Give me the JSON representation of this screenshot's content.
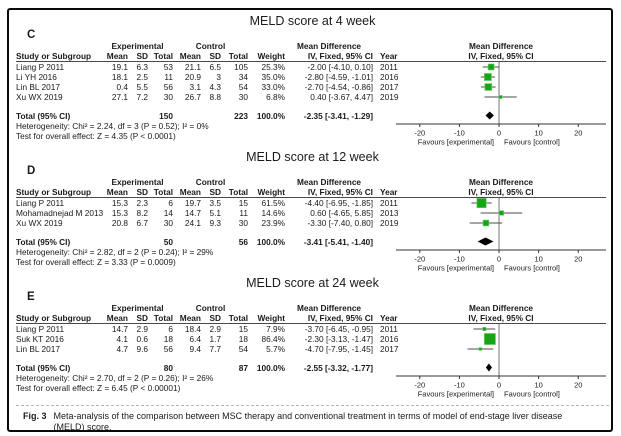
{
  "figure": {
    "caption_label": "Fig. 3",
    "caption_text": "Meta-analysis of the comparison between MSC therapy and conventional treatment in terms of model of end-stage liver disease (MELD) score."
  },
  "table_headers": {
    "study": "Study or Subgroup",
    "experimental": "Experimental",
    "control": "Control",
    "mean": "Mean",
    "sd": "SD",
    "total": "Total",
    "weight": "Weight",
    "mean_difference": "Mean Difference",
    "iv_fixed": "IV, Fixed, 95% CI",
    "year": "Year",
    "total_row": "Total (95% CI)"
  },
  "axis": {
    "favours_left": "Favours [experimental]",
    "favours_right": "Favours [control]"
  },
  "colors": {
    "square_green": "#17a517",
    "square_border": "#72cf72",
    "diamond_black": "#000000",
    "ci_line": "#4d4d4d"
  },
  "panels": [
    {
      "label": "C",
      "title": "MELD score at 4 week",
      "studies": [
        {
          "name": "Liang P 2011",
          "mean_e": "19.1",
          "sd_e": "6.3",
          "total_e": "53",
          "mean_c": "21.1",
          "sd_c": "6.5",
          "total_c": "105",
          "weight": "25.3%",
          "ci": "-2.00 [-4.10, 0.10]",
          "year": "2011"
        },
        {
          "name": "Li YH 2016",
          "mean_e": "18.1",
          "sd_e": "2.5",
          "total_e": "11",
          "mean_c": "20.9",
          "sd_c": "3",
          "total_c": "34",
          "weight": "35.0%",
          "ci": "-2.80 [-4.59, -1.01]",
          "year": "2016"
        },
        {
          "name": "Lin BL 2017",
          "mean_e": "0.4",
          "sd_e": "5.5",
          "total_e": "56",
          "mean_c": "3.1",
          "sd_c": "4.3",
          "total_c": "54",
          "weight": "33.0%",
          "ci": "-2.70 [-4.54, -0.86]",
          "year": "2017"
        },
        {
          "name": "Xu WX 2019",
          "mean_e": "27.1",
          "sd_e": "7.2",
          "total_e": "30",
          "mean_c": "26.7",
          "sd_c": "8.8",
          "total_c": "30",
          "weight": "6.8%",
          "ci": "0.40 [-3.67, 4.47]",
          "year": "2019"
        }
      ],
      "total": {
        "total_e": "150",
        "total_c": "223",
        "weight": "100.0%",
        "ci": "-2.35 [-3.41, -1.29]"
      },
      "heterogeneity": "Heterogeneity: Chi² = 2.24, df = 3 (P = 0.52); I² = 0%",
      "overall_effect": "Test for overall effect: Z = 4.35 (P < 0.0001)"
    },
    {
      "label": "D",
      "title": "MELD score at 12 week",
      "studies": [
        {
          "name": "Liang P 2011",
          "mean_e": "15.3",
          "sd_e": "2.3",
          "total_e": "6",
          "mean_c": "19.7",
          "sd_c": "3.5",
          "total_c": "15",
          "weight": "61.5%",
          "ci": "-4.40 [-6.95, -1.85]",
          "year": "2011"
        },
        {
          "name": "Mohamadnejad M 2013",
          "mean_e": "15.3",
          "sd_e": "8.2",
          "total_e": "14",
          "mean_c": "14.7",
          "sd_c": "5.1",
          "total_c": "11",
          "weight": "14.6%",
          "ci": "0.60 [-4.65, 5.85]",
          "year": "2013"
        },
        {
          "name": "Xu WX 2019",
          "mean_e": "20.8",
          "sd_e": "6.7",
          "total_e": "30",
          "mean_c": "24.1",
          "sd_c": "9.3",
          "total_c": "30",
          "weight": "23.9%",
          "ci": "-3.30 [-7.40, 0.80]",
          "year": "2019"
        }
      ],
      "total": {
        "total_e": "50",
        "total_c": "56",
        "weight": "100.0%",
        "ci": "-3.41 [-5.41, -1.40]"
      },
      "heterogeneity": "Heterogeneity: Chi² = 2.82, df = 2 (P = 0.24); I² = 29%",
      "overall_effect": "Test for overall effect: Z = 3.33 (P = 0.0009)"
    },
    {
      "label": "E",
      "title": "MELD score at 24 week",
      "studies": [
        {
          "name": "Liang P 2011",
          "mean_e": "14.7",
          "sd_e": "2.9",
          "total_e": "6",
          "mean_c": "18.4",
          "sd_c": "2.9",
          "total_c": "15",
          "weight": "7.9%",
          "ci": "-3.70 [-6.45, -0.95]",
          "year": "2011"
        },
        {
          "name": "Suk KT 2016",
          "mean_e": "4.1",
          "sd_e": "0.6",
          "total_e": "18",
          "mean_c": "6.4",
          "sd_c": "1.7",
          "total_c": "18",
          "weight": "86.4%",
          "ci": "-2.30 [-3.13, -1.47]",
          "year": "2016"
        },
        {
          "name": "Lin BL 2017",
          "mean_e": "4.7",
          "sd_e": "9.6",
          "total_e": "56",
          "mean_c": "9.4",
          "sd_c": "7.7",
          "total_c": "54",
          "weight": "5.7%",
          "ci": "-4.70 [-7.95, -1.45]",
          "year": "2017"
        }
      ],
      "total": {
        "total_e": "80",
        "total_c": "87",
        "weight": "100.0%",
        "ci": "-2.55 [-3.32, -1.77]"
      },
      "heterogeneity": "Heterogeneity: Chi² = 2.70, df = 2 (P = 0.26); I² = 26%",
      "overall_effect": "Test for overall effect: Z = 6.45 (P < 0.00001)"
    }
  ],
  "chart_data": [
    {
      "type": "scatter",
      "subtype": "forest_plot",
      "title": "MELD score at 4 week",
      "xlabel": "Mean Difference, IV, Fixed, 95% CI",
      "xlim": [
        -20,
        20
      ],
      "x_ticks": [
        -20,
        -10,
        0,
        10,
        20
      ],
      "annotations": [
        "Favours [experimental]",
        "Favours [control]"
      ],
      "points": [
        {
          "study": "Liang P 2011",
          "estimate": -2.0,
          "ci_low": -4.1,
          "ci_high": 0.1,
          "weight_pct": 25.3
        },
        {
          "study": "Li YH 2016",
          "estimate": -2.8,
          "ci_low": -4.59,
          "ci_high": -1.01,
          "weight_pct": 35.0
        },
        {
          "study": "Lin BL 2017",
          "estimate": -2.7,
          "ci_low": -4.54,
          "ci_high": -0.86,
          "weight_pct": 33.0
        },
        {
          "study": "Xu WX 2019",
          "estimate": 0.4,
          "ci_low": -3.67,
          "ci_high": 4.47,
          "weight_pct": 6.8
        }
      ],
      "summary": {
        "estimate": -2.35,
        "ci_low": -3.41,
        "ci_high": -1.29
      }
    },
    {
      "type": "scatter",
      "subtype": "forest_plot",
      "title": "MELD score at 12 week",
      "xlabel": "Mean Difference, IV, Fixed, 95% CI",
      "xlim": [
        -20,
        20
      ],
      "x_ticks": [
        -20,
        -10,
        0,
        10,
        20
      ],
      "annotations": [
        "Favours [experimental]",
        "Favours [control]"
      ],
      "points": [
        {
          "study": "Liang P 2011",
          "estimate": -4.4,
          "ci_low": -6.95,
          "ci_high": -1.85,
          "weight_pct": 61.5
        },
        {
          "study": "Mohamadnejad M 2013",
          "estimate": 0.6,
          "ci_low": -4.65,
          "ci_high": 5.85,
          "weight_pct": 14.6
        },
        {
          "study": "Xu WX 2019",
          "estimate": -3.3,
          "ci_low": -7.4,
          "ci_high": 0.8,
          "weight_pct": 23.9
        }
      ],
      "summary": {
        "estimate": -3.41,
        "ci_low": -5.41,
        "ci_high": -1.4
      }
    },
    {
      "type": "scatter",
      "subtype": "forest_plot",
      "title": "MELD score at 24 week",
      "xlabel": "Mean Difference, IV, Fixed, 95% CI",
      "xlim": [
        -20,
        20
      ],
      "x_ticks": [
        -20,
        -10,
        0,
        10,
        20
      ],
      "annotations": [
        "Favours [experimental]",
        "Favours [control]"
      ],
      "points": [
        {
          "study": "Liang P 2011",
          "estimate": -3.7,
          "ci_low": -6.45,
          "ci_high": -0.95,
          "weight_pct": 7.9
        },
        {
          "study": "Suk KT 2016",
          "estimate": -2.3,
          "ci_low": -3.13,
          "ci_high": -1.47,
          "weight_pct": 86.4
        },
        {
          "study": "Lin BL 2017",
          "estimate": -4.7,
          "ci_low": -7.95,
          "ci_high": -1.45,
          "weight_pct": 5.7
        }
      ],
      "summary": {
        "estimate": -2.55,
        "ci_low": -3.32,
        "ci_high": -1.77
      }
    }
  ]
}
